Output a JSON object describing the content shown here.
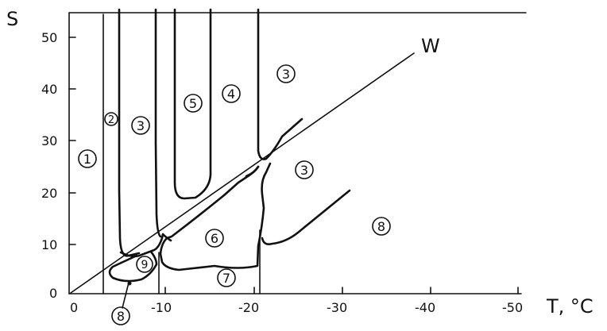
{
  "axes": {
    "y_label": "S",
    "x_label": "T, °C",
    "y_ticks": [
      "0",
      "10",
      "20",
      "30",
      "40",
      "50"
    ],
    "x_ticks": [
      "0",
      "-10",
      "-20",
      "-30",
      "-40",
      "-50"
    ]
  },
  "line_label": "W",
  "regions": [
    "1",
    "2",
    "3",
    "4",
    "5",
    "3",
    "3",
    "6",
    "7",
    "8",
    "9",
    "8"
  ]
}
